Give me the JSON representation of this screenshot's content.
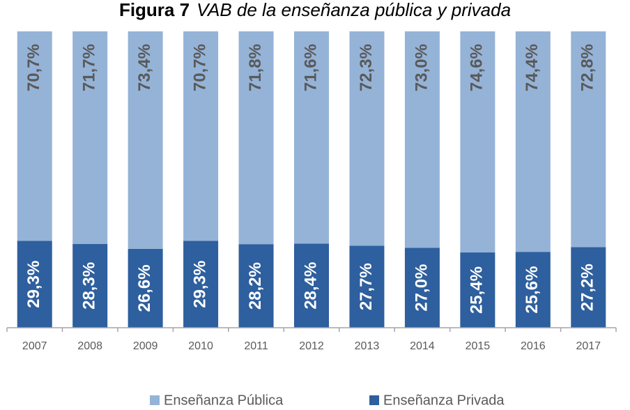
{
  "chart_data": {
    "type": "stacked_bar",
    "figure_label": "Figura 7",
    "title": "VAB de la enseñanza pública y privada",
    "categories": [
      "2007",
      "2008",
      "2009",
      "2010",
      "2011",
      "2012",
      "2013",
      "2014",
      "2015",
      "2016",
      "2017"
    ],
    "ylim": [
      0,
      100
    ],
    "legend": "bottom",
    "series": [
      {
        "name": "Enseñanza Pública",
        "color": "#95b3d7",
        "label_color": "#595959",
        "values": [
          70.7,
          71.7,
          73.4,
          70.7,
          71.8,
          71.6,
          72.3,
          73.0,
          74.6,
          74.4,
          72.8
        ],
        "value_labels": [
          "70,7%",
          "71,7%",
          "73,4%",
          "70,7%",
          "71,8%",
          "71,6%",
          "72,3%",
          "73,0%",
          "74,6%",
          "74,4%",
          "72,8%"
        ]
      },
      {
        "name": "Enseñanza Privada",
        "color": "#2e5f9e",
        "label_color": "#ffffff",
        "values": [
          29.3,
          28.3,
          26.6,
          29.3,
          28.2,
          28.4,
          27.7,
          27.0,
          25.4,
          25.6,
          27.2
        ],
        "value_labels": [
          "29,3%",
          "28,3%",
          "26,6%",
          "29,3%",
          "28,2%",
          "28,4%",
          "27,7%",
          "27,0%",
          "25,4%",
          "25,6%",
          "27,2%"
        ]
      }
    ]
  }
}
